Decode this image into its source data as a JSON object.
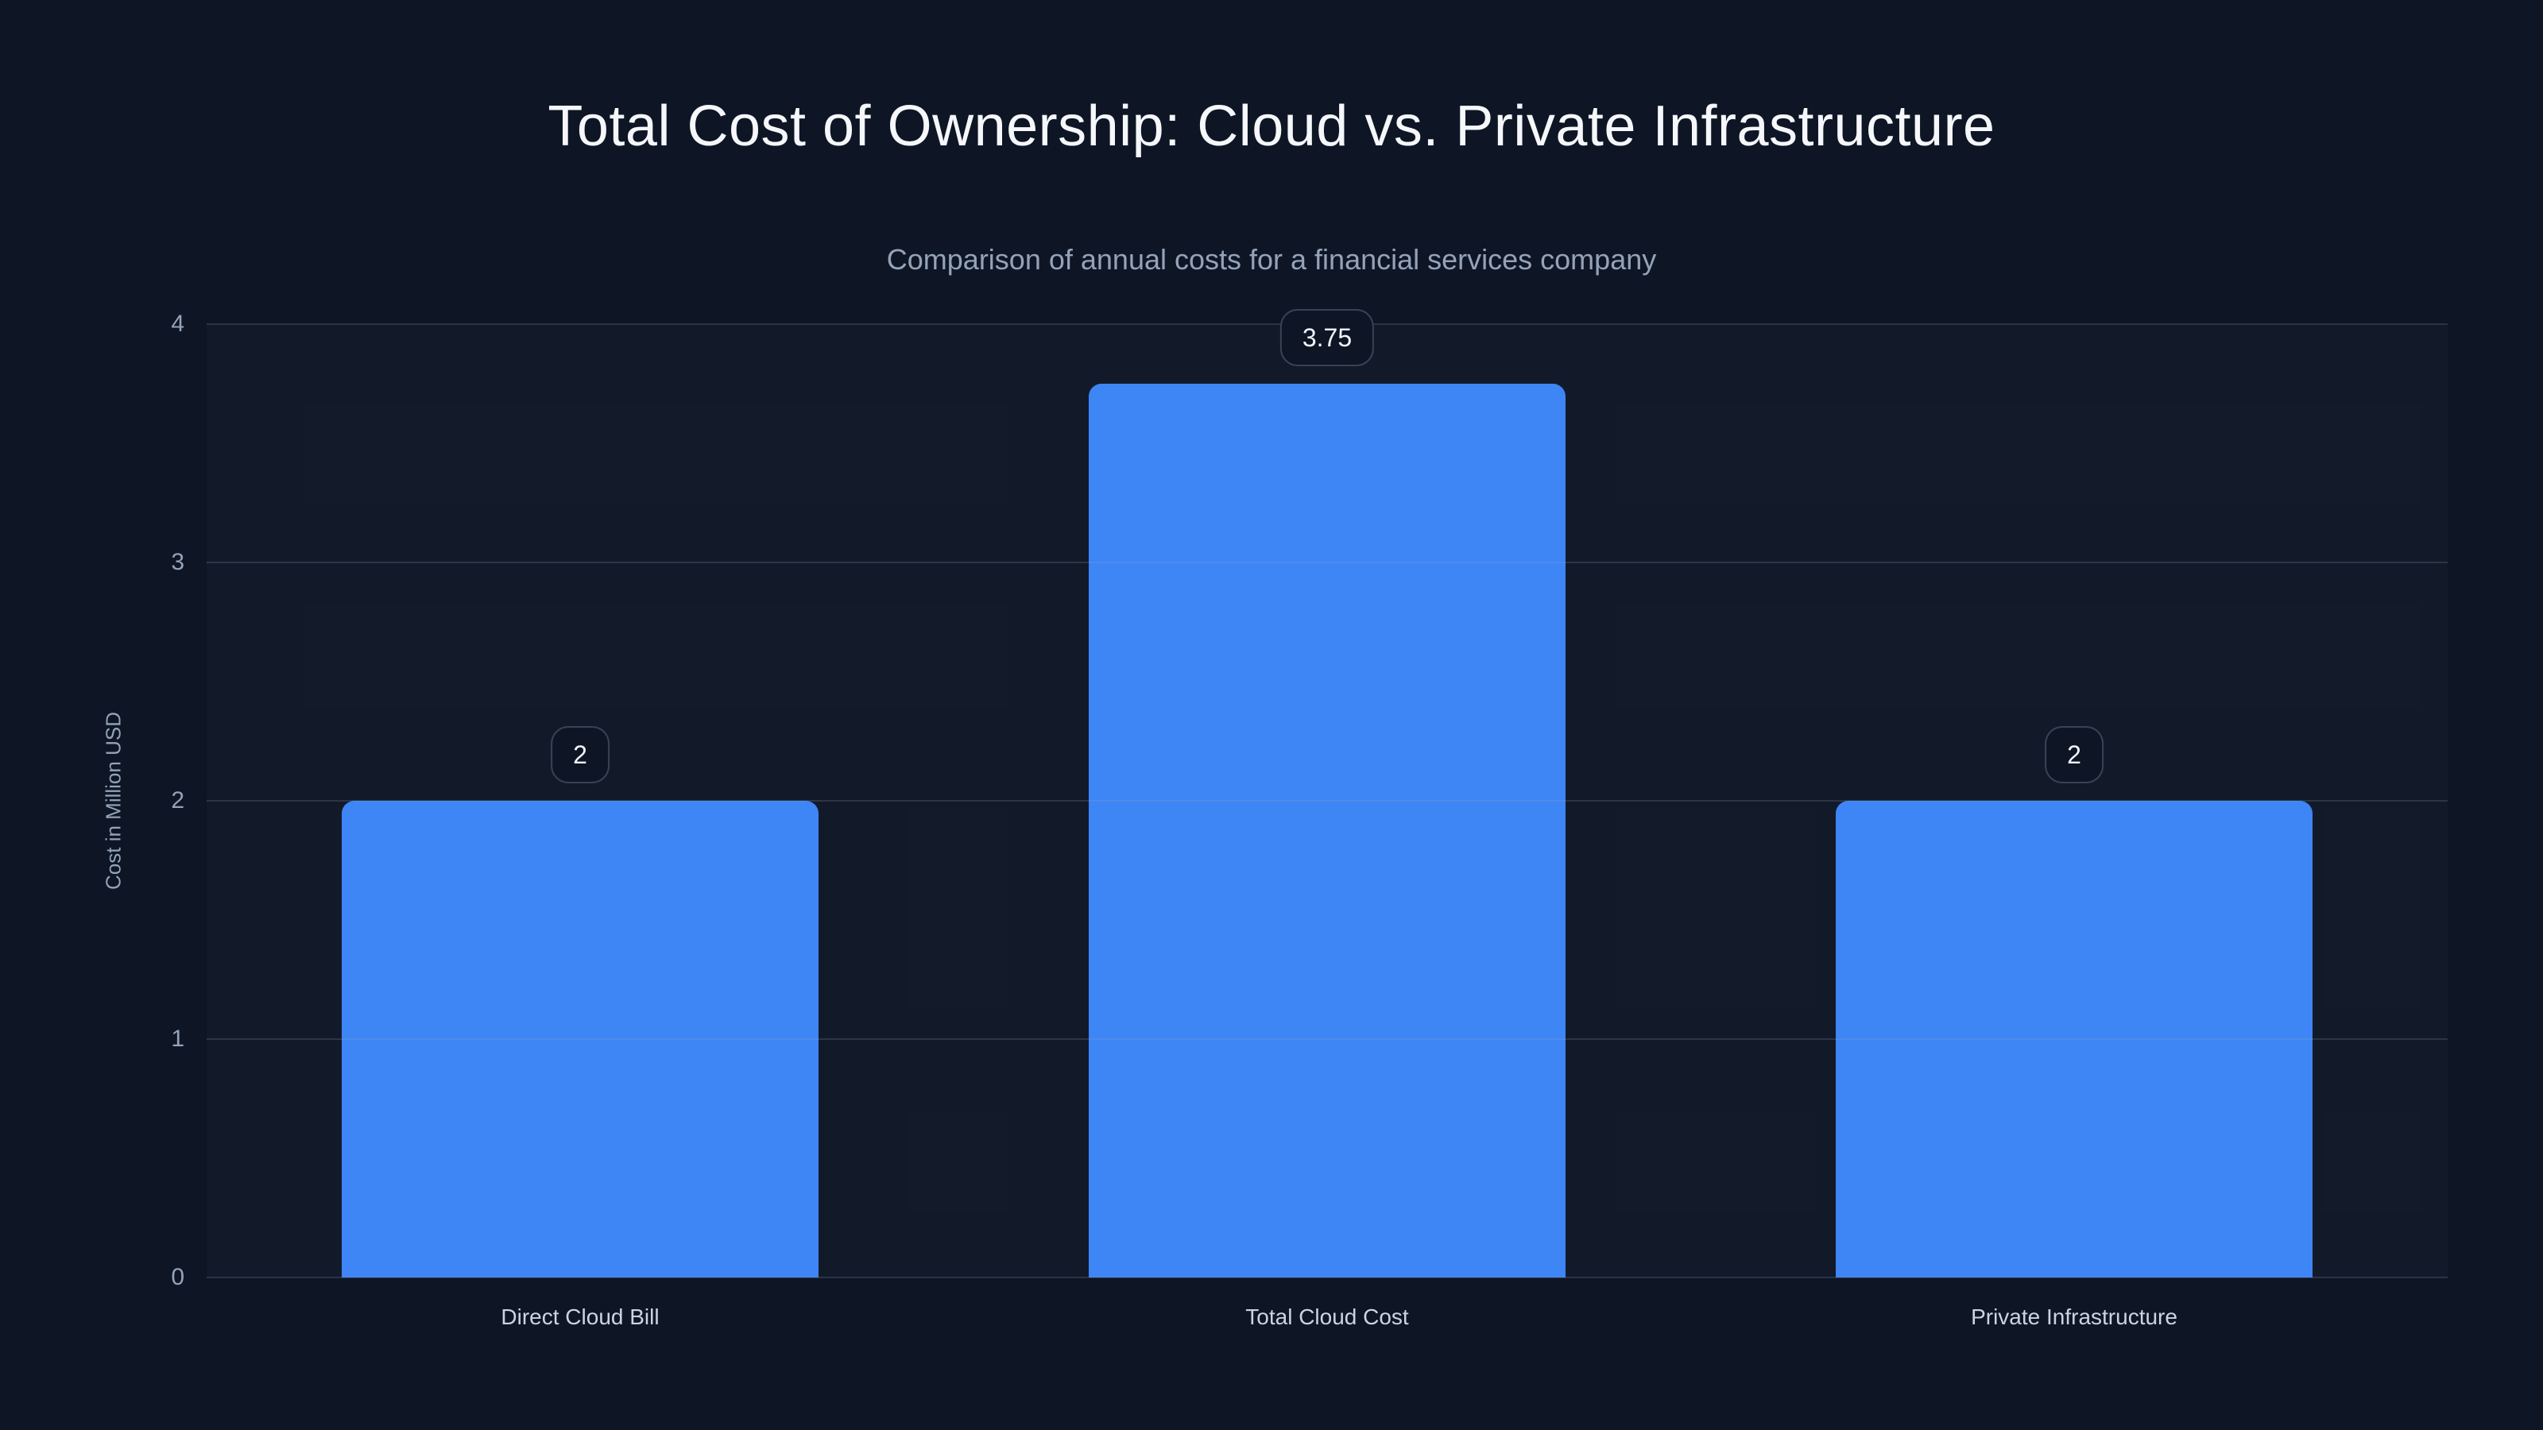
{
  "chart_data": {
    "type": "bar",
    "title": "Total Cost of Ownership: Cloud vs. Private Infrastructure",
    "subtitle": "Comparison of annual costs for a financial services company",
    "categories": [
      "Direct Cloud Bill",
      "Total Cloud Cost",
      "Private Infrastructure"
    ],
    "values": [
      2,
      3.75,
      2
    ],
    "value_labels": [
      "2",
      "3.75",
      "2"
    ],
    "xlabel": "",
    "ylabel": "Cost in Million USD",
    "ylim": [
      0,
      4
    ],
    "yticks": [
      "0",
      "1",
      "2",
      "3",
      "4"
    ],
    "grid": true,
    "legend": false
  },
  "colors": {
    "background": "#0e1626",
    "plot_background": "rgba(255,255,255,0.02)",
    "gridline": "rgba(148,163,184,0.2)",
    "bar": "#3e85f6",
    "title_text": "#f5f7fa",
    "subtitle_text": "#94a3b8",
    "tick_text": "#94a3b8",
    "category_text": "#cbd5e1",
    "badge_text": "#f1f5f9",
    "badge_border": "rgba(148,163,184,0.32)"
  }
}
